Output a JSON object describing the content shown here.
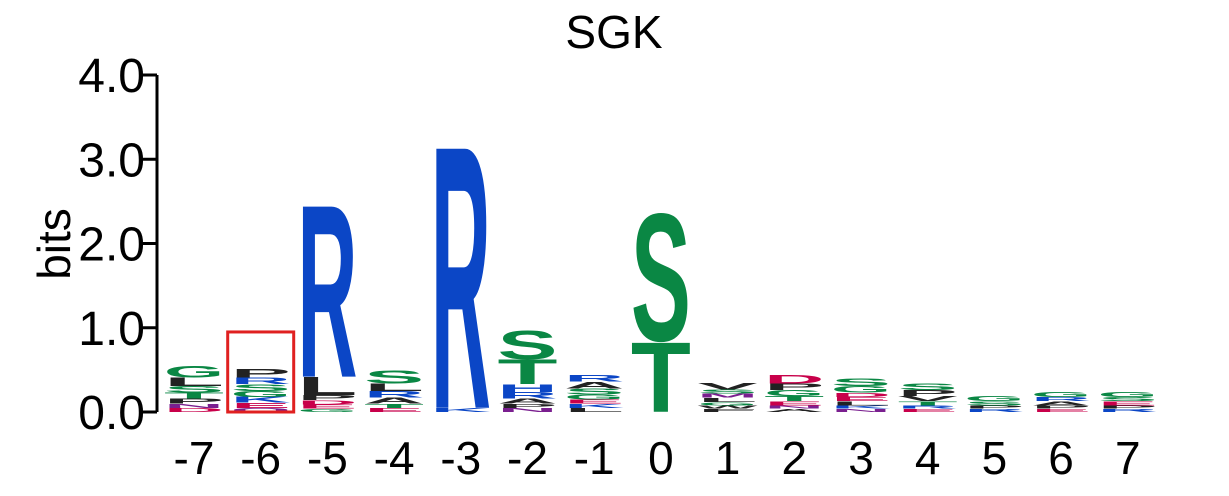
{
  "chart_data": {
    "type": "sequence-logo",
    "title": "SGK",
    "ylabel": "bits",
    "ylim": [
      0,
      4.0
    ],
    "yticks": [
      "0.0",
      "1.0",
      "2.0",
      "3.0",
      "4.0"
    ],
    "xticks": [
      "-7",
      "-6",
      "-5",
      "-4",
      "-3",
      "-2",
      "-1",
      "0",
      "1",
      "2",
      "3",
      "4",
      "5",
      "6",
      "7"
    ],
    "highlighted_position": "-6",
    "colors": {
      "basic": "#0b46c6",
      "polar": "#0a8744",
      "hydrophobic": "#222222",
      "acidic": "#c8004a",
      "amide": "#7a1f8f",
      "highlight": "#e02020"
    },
    "positions": [
      {
        "pos": "-7",
        "letters": [
          {
            "aa": "G",
            "bits": 0.14,
            "group": "polar"
          },
          {
            "aa": "L",
            "bits": 0.1,
            "group": "hydrophobic"
          },
          {
            "aa": "S",
            "bits": 0.08,
            "group": "polar"
          },
          {
            "aa": "T",
            "bits": 0.07,
            "group": "polar"
          },
          {
            "aa": "P",
            "bits": 0.06,
            "group": "hydrophobic"
          },
          {
            "aa": "D",
            "bits": 0.05,
            "group": "acidic"
          },
          {
            "aa": "N",
            "bits": 0.05,
            "group": "amide"
          }
        ]
      },
      {
        "pos": "-6",
        "letters": [
          {
            "aa": "P",
            "bits": 0.1,
            "group": "hydrophobic"
          },
          {
            "aa": "S",
            "bits": 0.08,
            "group": "polar"
          },
          {
            "aa": "R",
            "bits": 0.08,
            "group": "basic"
          },
          {
            "aa": "K",
            "bits": 0.07,
            "group": "basic"
          },
          {
            "aa": "G",
            "bits": 0.07,
            "group": "polar"
          },
          {
            "aa": "E",
            "bits": 0.06,
            "group": "acidic"
          },
          {
            "aa": "Q",
            "bits": 0.05,
            "group": "amide"
          }
        ]
      },
      {
        "pos": "-5",
        "letters": [
          {
            "aa": "R",
            "bits": 2.1,
            "group": "basic"
          },
          {
            "aa": "L",
            "bits": 0.22,
            "group": "hydrophobic"
          },
          {
            "aa": "P",
            "bits": 0.06,
            "group": "hydrophobic"
          },
          {
            "aa": "E",
            "bits": 0.05,
            "group": "acidic"
          },
          {
            "aa": "D",
            "bits": 0.05,
            "group": "acidic"
          },
          {
            "aa": "G",
            "bits": 0.04,
            "group": "polar"
          }
        ]
      },
      {
        "pos": "-4",
        "letters": [
          {
            "aa": "S",
            "bits": 0.16,
            "group": "polar"
          },
          {
            "aa": "L",
            "bits": 0.09,
            "group": "hydrophobic"
          },
          {
            "aa": "R",
            "bits": 0.08,
            "group": "basic"
          },
          {
            "aa": "A",
            "bits": 0.07,
            "group": "hydrophobic"
          },
          {
            "aa": "E",
            "bits": 0.05,
            "group": "acidic"
          },
          {
            "aa": "T",
            "bits": 0.05,
            "group": "polar"
          }
        ]
      },
      {
        "pos": "-3",
        "letters": [
          {
            "aa": "R",
            "bits": 3.2,
            "group": "basic"
          },
          {
            "aa": "K",
            "bits": 0.05,
            "group": "basic"
          }
        ]
      },
      {
        "pos": "-2",
        "letters": [
          {
            "aa": "S",
            "bits": 0.35,
            "group": "polar"
          },
          {
            "aa": "T",
            "bits": 0.3,
            "group": "polar"
          },
          {
            "aa": "H",
            "bits": 0.09,
            "group": "basic"
          },
          {
            "aa": "R",
            "bits": 0.08,
            "group": "basic"
          },
          {
            "aa": "A",
            "bits": 0.06,
            "group": "hydrophobic"
          },
          {
            "aa": "N",
            "bits": 0.05,
            "group": "amide"
          },
          {
            "aa": "P",
            "bits": 0.05,
            "group": "hydrophobic"
          }
        ]
      },
      {
        "pos": "-1",
        "letters": [
          {
            "aa": "L",
            "bits": 0.05,
            "group": "hydrophobic"
          },
          {
            "aa": "A",
            "bits": 0.08,
            "group": "hydrophobic"
          },
          {
            "aa": "R",
            "bits": 0.08,
            "group": "basic"
          },
          {
            "aa": "S",
            "bits": 0.07,
            "group": "polar"
          },
          {
            "aa": "G",
            "bits": 0.06,
            "group": "polar"
          },
          {
            "aa": "K",
            "bits": 0.05,
            "group": "basic"
          },
          {
            "aa": "E",
            "bits": 0.05,
            "group": "acidic"
          }
        ]
      },
      {
        "pos": "0",
        "letters": [
          {
            "aa": "S",
            "bits": 1.55,
            "group": "polar"
          },
          {
            "aa": "T",
            "bits": 0.85,
            "group": "polar"
          }
        ]
      },
      {
        "pos": "1",
        "letters": [
          {
            "aa": "V",
            "bits": 0.08,
            "group": "hydrophobic"
          },
          {
            "aa": "L",
            "bits": 0.05,
            "group": "hydrophobic"
          },
          {
            "aa": "M",
            "bits": 0.05,
            "group": "amide"
          },
          {
            "aa": "S",
            "bits": 0.05,
            "group": "polar"
          },
          {
            "aa": "F",
            "bits": 0.04,
            "group": "hydrophobic"
          },
          {
            "aa": "W",
            "bits": 0.04,
            "group": "hydrophobic"
          },
          {
            "aa": "G",
            "bits": 0.04,
            "group": "polar"
          }
        ]
      },
      {
        "pos": "2",
        "letters": [
          {
            "aa": "D",
            "bits": 0.1,
            "group": "acidic"
          },
          {
            "aa": "P",
            "bits": 0.08,
            "group": "hydrophobic"
          },
          {
            "aa": "G",
            "bits": 0.07,
            "group": "polar"
          },
          {
            "aa": "T",
            "bits": 0.06,
            "group": "polar"
          },
          {
            "aa": "E",
            "bits": 0.05,
            "group": "acidic"
          },
          {
            "aa": "A",
            "bits": 0.04,
            "group": "hydrophobic"
          },
          {
            "aa": "N",
            "bits": 0.04,
            "group": "amide"
          }
        ]
      },
      {
        "pos": "3",
        "letters": [
          {
            "aa": "S",
            "bits": 0.09,
            "group": "polar"
          },
          {
            "aa": "G",
            "bits": 0.08,
            "group": "polar"
          },
          {
            "aa": "L",
            "bits": 0.05,
            "group": "hydrophobic"
          },
          {
            "aa": "E",
            "bits": 0.05,
            "group": "acidic"
          },
          {
            "aa": "D",
            "bits": 0.05,
            "group": "acidic"
          },
          {
            "aa": "N",
            "bits": 0.04,
            "group": "amide"
          },
          {
            "aa": "K",
            "bits": 0.04,
            "group": "basic"
          }
        ]
      },
      {
        "pos": "4",
        "letters": [
          {
            "aa": "S",
            "bits": 0.08,
            "group": "polar"
          },
          {
            "aa": "P",
            "bits": 0.07,
            "group": "hydrophobic"
          },
          {
            "aa": "V",
            "bits": 0.06,
            "group": "hydrophobic"
          },
          {
            "aa": "T",
            "bits": 0.05,
            "group": "polar"
          },
          {
            "aa": "E",
            "bits": 0.04,
            "group": "acidic"
          },
          {
            "aa": "R",
            "bits": 0.04,
            "group": "basic"
          }
        ]
      },
      {
        "pos": "5",
        "letters": [
          {
            "aa": "G",
            "bits": 0.06,
            "group": "polar"
          },
          {
            "aa": "S",
            "bits": 0.05,
            "group": "polar"
          },
          {
            "aa": "R",
            "bits": 0.04,
            "group": "basic"
          },
          {
            "aa": "P",
            "bits": 0.04,
            "group": "hydrophobic"
          }
        ]
      },
      {
        "pos": "6",
        "letters": [
          {
            "aa": "G",
            "bits": 0.06,
            "group": "polar"
          },
          {
            "aa": "A",
            "bits": 0.05,
            "group": "hydrophobic"
          },
          {
            "aa": "R",
            "bits": 0.05,
            "group": "basic"
          },
          {
            "aa": "E",
            "bits": 0.04,
            "group": "acidic"
          },
          {
            "aa": "P",
            "bits": 0.04,
            "group": "hydrophobic"
          }
        ]
      },
      {
        "pos": "7",
        "letters": [
          {
            "aa": "G",
            "bits": 0.06,
            "group": "polar"
          },
          {
            "aa": "E",
            "bits": 0.05,
            "group": "acidic"
          },
          {
            "aa": "S",
            "bits": 0.05,
            "group": "polar"
          },
          {
            "aa": "R",
            "bits": 0.04,
            "group": "basic"
          },
          {
            "aa": "P",
            "bits": 0.04,
            "group": "hydrophobic"
          }
        ]
      }
    ]
  }
}
